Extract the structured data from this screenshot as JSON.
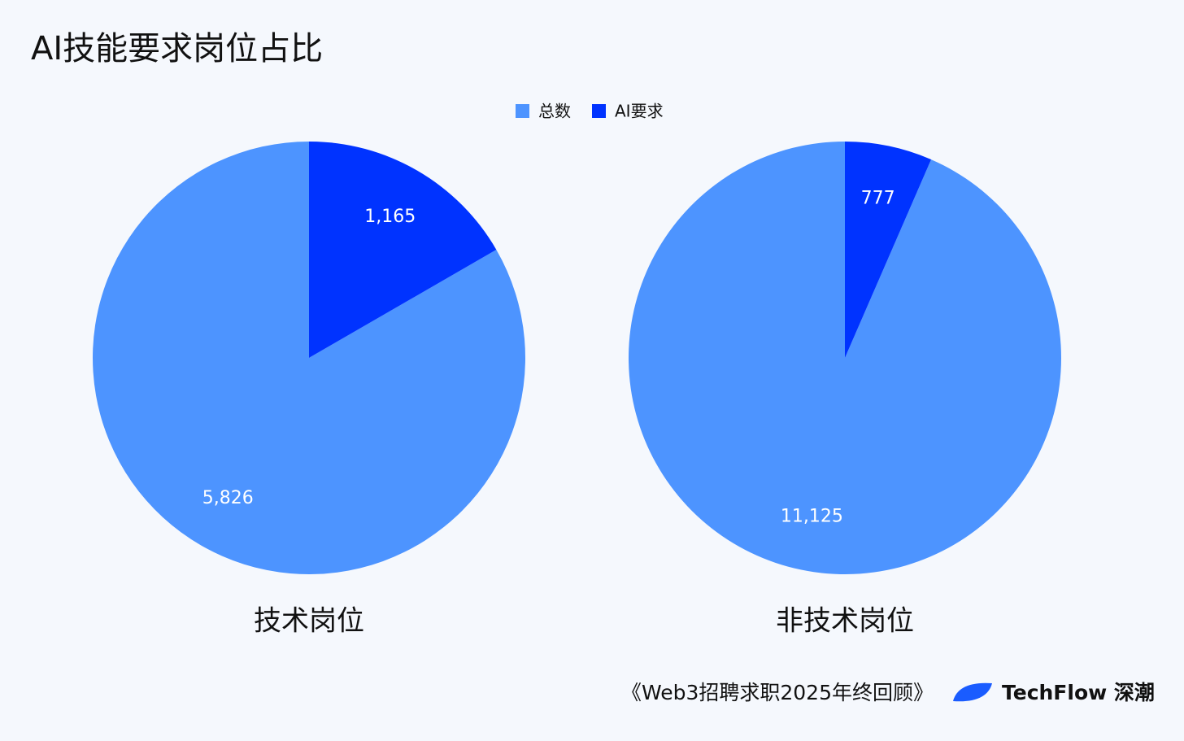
{
  "chart_data": {
    "type": "pie",
    "title": "AI技能要求岗位占比",
    "categories": [
      "总数",
      "AI要求"
    ],
    "colors": [
      "#4d94ff",
      "#0033ff"
    ],
    "series": [
      {
        "name": "技术岗位",
        "values": [
          5826,
          1165
        ],
        "value_labels": [
          "5,826",
          "1,165"
        ]
      },
      {
        "name": "非技术岗位",
        "values": [
          11125,
          777
        ],
        "value_labels": [
          "11,125",
          "777"
        ]
      }
    ]
  },
  "footer": {
    "source": "《Web3招聘求职2025年终回顾》",
    "brand": "TechFlow 深潮"
  }
}
